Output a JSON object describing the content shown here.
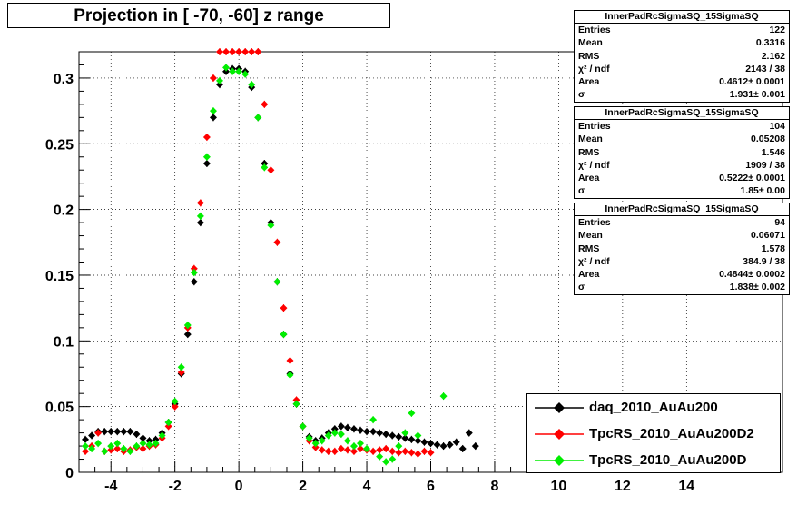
{
  "title": "Projection in [ -70, -60] z range",
  "chart_data": {
    "type": "scatter",
    "title": "Projection in [ -70, -60] z range",
    "xlabel": "",
    "ylabel": "",
    "xlim": [
      -5,
      17
    ],
    "ylim": [
      0,
      0.32
    ],
    "grid": true,
    "x_ticks": [
      "-4",
      "-2",
      "0",
      "2",
      "4",
      "6",
      "8",
      "10",
      "12",
      "14"
    ],
    "x_tick_values": [
      -4,
      -2,
      0,
      2,
      4,
      6,
      8,
      10,
      12,
      14
    ],
    "y_ticks": [
      "0",
      "0.05",
      "0.1",
      "0.15",
      "0.2",
      "0.25",
      "0.3"
    ],
    "y_tick_values": [
      0,
      0.05,
      0.1,
      0.15,
      0.2,
      0.25,
      0.3
    ],
    "series": [
      {
        "name": "daq_2010_AuAu200",
        "color": "#000000",
        "x": [
          -4.8,
          -4.6,
          -4.4,
          -4.2,
          -4.0,
          -3.8,
          -3.6,
          -3.4,
          -3.2,
          -3.0,
          -2.8,
          -2.6,
          -2.4,
          -2.2,
          -2.0,
          -1.8,
          -1.6,
          -1.4,
          -1.2,
          -1.0,
          -0.8,
          -0.6,
          -0.4,
          -0.2,
          0.0,
          0.2,
          0.4,
          0.6,
          0.8,
          1.0,
          1.2,
          1.4,
          1.6,
          1.8,
          2.0,
          2.2,
          2.4,
          2.6,
          2.8,
          3.0,
          3.2,
          3.4,
          3.6,
          3.8,
          4.0,
          4.2,
          4.4,
          4.6,
          4.8,
          5.0,
          5.2,
          5.4,
          5.6,
          5.8,
          6.0,
          6.2,
          6.4,
          6.6,
          6.8,
          7.0,
          7.2,
          7.4
        ],
        "y": [
          0.025,
          0.028,
          0.031,
          0.031,
          0.031,
          0.031,
          0.031,
          0.031,
          0.029,
          0.026,
          0.024,
          0.025,
          0.03,
          0.038,
          0.052,
          0.075,
          0.105,
          0.145,
          0.19,
          0.235,
          0.27,
          0.295,
          0.305,
          0.307,
          0.307,
          0.305,
          0.293,
          0.27,
          0.235,
          0.19,
          0.145,
          0.105,
          0.075,
          0.052,
          0.035,
          0.027,
          0.024,
          0.026,
          0.03,
          0.033,
          0.035,
          0.034,
          0.033,
          0.032,
          0.031,
          0.031,
          0.03,
          0.029,
          0.028,
          0.027,
          0.026,
          0.025,
          0.024,
          0.023,
          0.022,
          0.021,
          0.02,
          0.021,
          0.023,
          0.018,
          0.03,
          0.02
        ]
      },
      {
        "name": "TpcRS_2010_AuAu200D2",
        "color": "#ff0000",
        "x": [
          -4.8,
          -4.6,
          -4.4,
          -4.2,
          -4.0,
          -3.8,
          -3.6,
          -3.4,
          -3.2,
          -3.0,
          -2.8,
          -2.6,
          -2.4,
          -2.2,
          -2.0,
          -1.8,
          -1.6,
          -1.4,
          -1.2,
          -1.0,
          -0.8,
          -0.6,
          -0.4,
          -0.2,
          0.0,
          0.2,
          0.4,
          0.6,
          0.8,
          1.0,
          1.2,
          1.4,
          1.6,
          1.8,
          2.0,
          2.2,
          2.4,
          2.6,
          2.8,
          3.0,
          3.2,
          3.4,
          3.6,
          3.8,
          4.0,
          4.2,
          4.4,
          4.6,
          4.8,
          5.0,
          5.2,
          5.4,
          5.6,
          5.8,
          6.0
        ],
        "y": [
          0.016,
          0.02,
          0.03,
          0.016,
          0.017,
          0.018,
          0.016,
          0.017,
          0.019,
          0.018,
          0.02,
          0.021,
          0.026,
          0.035,
          0.05,
          0.076,
          0.11,
          0.155,
          0.205,
          0.255,
          0.3,
          0.32,
          0.32,
          0.32,
          0.32,
          0.32,
          0.32,
          0.32,
          0.28,
          0.23,
          0.175,
          0.125,
          0.085,
          0.055,
          0.035,
          0.024,
          0.019,
          0.017,
          0.016,
          0.016,
          0.018,
          0.017,
          0.016,
          0.018,
          0.017,
          0.016,
          0.017,
          0.018,
          0.016,
          0.015,
          0.016,
          0.015,
          0.014,
          0.016,
          0.015
        ]
      },
      {
        "name": "TpcRS_2010_AuAu200D",
        "color": "#00ee00",
        "x": [
          -4.8,
          -4.6,
          -4.4,
          -4.2,
          -4.0,
          -3.8,
          -3.6,
          -3.4,
          -3.2,
          -3.0,
          -2.8,
          -2.6,
          -2.4,
          -2.2,
          -2.0,
          -1.8,
          -1.6,
          -1.4,
          -1.2,
          -1.0,
          -0.8,
          -0.6,
          -0.4,
          -0.2,
          0.0,
          0.2,
          0.4,
          0.6,
          0.8,
          1.0,
          1.2,
          1.4,
          1.6,
          1.8,
          2.0,
          2.2,
          2.4,
          2.6,
          2.8,
          3.0,
          3.2,
          3.4,
          3.6,
          3.8,
          4.0,
          4.2,
          4.4,
          4.6,
          4.8,
          5.0,
          5.2,
          5.4,
          5.6,
          6.4
        ],
        "y": [
          0.02,
          0.018,
          0.022,
          0.016,
          0.02,
          0.022,
          0.018,
          0.016,
          0.02,
          0.022,
          0.021,
          0.022,
          0.028,
          0.038,
          0.054,
          0.08,
          0.112,
          0.152,
          0.195,
          0.24,
          0.275,
          0.298,
          0.308,
          0.305,
          0.305,
          0.303,
          0.295,
          0.27,
          0.232,
          0.188,
          0.145,
          0.105,
          0.074,
          0.052,
          0.035,
          0.026,
          0.022,
          0.024,
          0.028,
          0.03,
          0.029,
          0.024,
          0.02,
          0.022,
          0.018,
          0.04,
          0.012,
          0.008,
          0.01,
          0.02,
          0.03,
          0.045,
          0.028,
          0.058
        ]
      }
    ],
    "stats": [
      {
        "name": "InnerPadRcSigmaSQ_15SigmaSQ",
        "Entries": "122",
        "Mean": "0.3316",
        "RMS": "2.162",
        "chi2ndf": "2143 / 38",
        "Area": "0.4612± 0.0001",
        "sigma": "1.931± 0.001"
      },
      {
        "name": "InnerPadRcSigmaSQ_15SigmaSQ",
        "Entries": "104",
        "Mean": "0.05208",
        "RMS": "1.546",
        "chi2ndf": "1909 / 38",
        "Area": "0.5222± 0.0001",
        "sigma": "1.85± 0.00"
      },
      {
        "name": "InnerPadRcSigmaSQ_15SigmaSQ",
        "Entries": "94",
        "Mean": "0.06071",
        "RMS": "1.578",
        "chi2ndf": "384.9 / 38",
        "Area": "0.4844± 0.0002",
        "sigma": "1.838± 0.002"
      }
    ],
    "legend_position": "bottom-right"
  },
  "labels": {
    "entries": "Entries",
    "mean": "Mean",
    "rms": "RMS",
    "chi2ndf": "χ² / ndf",
    "area": "Area",
    "sigma": "σ"
  }
}
